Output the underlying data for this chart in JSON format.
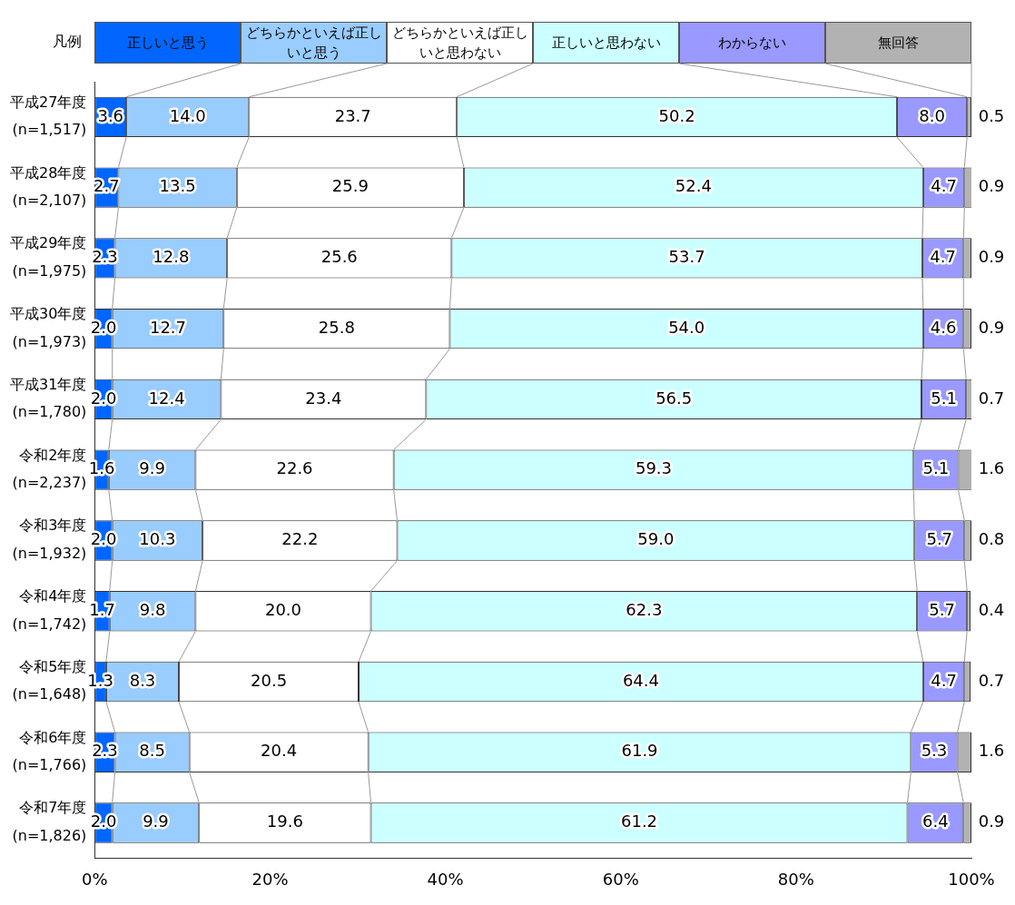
{
  "chart_data": {
    "type": "bar",
    "orientation": "horizontal",
    "stacked": true,
    "legend": "top",
    "legend_title": "凡例",
    "grid": false,
    "categories": [
      "平成27年度\n(n=1,517)",
      "平成28年度\n(n=2,107)",
      "平成29年度\n(n=1,975)",
      "平成30年度\n(n=1,973)",
      "平成31年度\n(n=1,780)",
      "令和2年度\n(n=2,237)",
      "令和3年度\n(n=1,932)",
      "令和4年度\n(n=1,742)",
      "令和5年度\n(n=1,648)",
      "令和6年度\n(n=1,766)",
      "令和7年度\n(n=1,826)"
    ],
    "series": [
      {
        "name": "正しいと思う",
        "color": "#0066ff",
        "values": [
          3.6,
          2.7,
          2.3,
          2.0,
          2.0,
          1.6,
          2.0,
          1.7,
          1.3,
          2.3,
          2.0
        ],
        "value_labels": [
          "3.6",
          "2.7",
          "2.3",
          "2.0",
          "2.0",
          "1.6",
          "2.0",
          "1.7",
          "1.3",
          "2.3",
          "2.0"
        ]
      },
      {
        "name": "どちらかといえば正しいと思う",
        "color": "#99ccff",
        "values": [
          14.0,
          13.5,
          12.8,
          12.7,
          12.4,
          9.9,
          10.3,
          9.8,
          8.3,
          8.5,
          9.9
        ],
        "value_labels": [
          "14.0",
          "13.5",
          "12.8",
          "12.7",
          "12.4",
          "9.9",
          "10.3",
          "9.8",
          "8.3",
          "8.5",
          "9.9"
        ]
      },
      {
        "name": "どちらかといえば正しいと思わない",
        "color": "#ffffff",
        "values": [
          23.7,
          25.9,
          25.6,
          25.8,
          23.4,
          22.6,
          22.2,
          20.0,
          20.5,
          20.4,
          19.6
        ],
        "value_labels": [
          "23.7",
          "25.9",
          "25.6",
          "25.8",
          "23.4",
          "22.6",
          "22.2",
          "20.0",
          "20.5",
          "20.4",
          "19.6"
        ]
      },
      {
        "name": "正しいと思わない",
        "color": "#ccffff",
        "values": [
          50.2,
          52.4,
          53.7,
          54.0,
          56.5,
          59.3,
          59.0,
          62.3,
          64.4,
          61.9,
          61.2
        ],
        "value_labels": [
          "50.2",
          "52.4",
          "53.7",
          "54.0",
          "56.5",
          "59.3",
          "59.0",
          "62.3",
          "64.4",
          "61.9",
          "61.2"
        ]
      },
      {
        "name": "わからない",
        "color": "#9999ff",
        "values": [
          8.0,
          4.7,
          4.7,
          4.6,
          5.1,
          5.1,
          5.7,
          5.7,
          4.7,
          5.3,
          6.4
        ],
        "value_labels": [
          "8.0",
          "4.7",
          "4.7",
          "4.6",
          "5.1",
          "5.1",
          "5.7",
          "5.7",
          "4.7",
          "5.3",
          "6.4"
        ]
      },
      {
        "name": "無回答",
        "color": "#b2b2b2",
        "values": [
          0.5,
          0.9,
          0.9,
          0.9,
          0.7,
          1.6,
          0.8,
          0.4,
          0.7,
          1.6,
          0.9
        ],
        "value_labels": [
          "0.5",
          "0.9",
          "0.9",
          "0.9",
          "0.7",
          "1.6",
          "0.8",
          "0.4",
          "0.7",
          "1.6",
          "0.9"
        ]
      }
    ],
    "xlim": [
      0,
      100
    ],
    "xticks": [
      {
        "value": 0,
        "label": "0%"
      },
      {
        "value": 20,
        "label": "20%"
      },
      {
        "value": 40,
        "label": "40%"
      },
      {
        "value": 60,
        "label": "60%"
      },
      {
        "value": 80,
        "label": "80%"
      },
      {
        "value": 100,
        "label": "100%"
      }
    ]
  }
}
